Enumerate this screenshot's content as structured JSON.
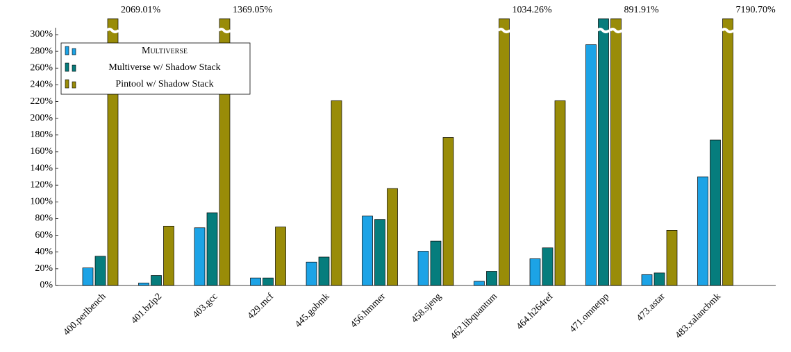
{
  "chart_data": {
    "type": "bar",
    "categories": [
      "400.perlbench",
      "401.bzip2",
      "403.gcc",
      "429.mcf",
      "445.gobmk",
      "456.hmmer",
      "458.sjeng",
      "462.libquantum",
      "464.h264ref",
      "471.omnetpp",
      "473.astar",
      "483.xalancbmk"
    ],
    "series": [
      {
        "name": "Multiverse",
        "color": "#1ca3e6",
        "values": [
          21,
          3,
          69,
          9,
          28,
          83,
          41,
          5,
          32,
          288,
          13,
          130
        ]
      },
      {
        "name": "Multiverse w/ Shadow Stack",
        "color": "#067d7d",
        "values": [
          35,
          12,
          87,
          9,
          34,
          79,
          53,
          17,
          45,
          301,
          15,
          174
        ]
      },
      {
        "name": "Pintool w/ Shadow Stack",
        "color": "#998c08",
        "values": [
          2069.01,
          71,
          1369.05,
          70,
          221,
          116,
          177,
          1034.26,
          221,
          891.91,
          66,
          7190.7
        ],
        "value_labels": [
          "2069.01%",
          null,
          "1369.05%",
          null,
          null,
          null,
          null,
          "1034.26%",
          null,
          "891.91%",
          null,
          "7190.70%"
        ]
      }
    ],
    "ylim": [
      0,
      300
    ],
    "yticks": [
      {
        "value": 0,
        "label": "0%"
      },
      {
        "value": 20,
        "label": "20%"
      },
      {
        "value": 40,
        "label": "40%"
      },
      {
        "value": 60,
        "label": "60%"
      },
      {
        "value": 80,
        "label": "80%"
      },
      {
        "value": 100,
        "label": "100%"
      },
      {
        "value": 120,
        "label": "120%"
      },
      {
        "value": 140,
        "label": "140%"
      },
      {
        "value": 160,
        "label": "160%"
      },
      {
        "value": 180,
        "label": "180%"
      },
      {
        "value": 200,
        "label": "200%"
      },
      {
        "value": 220,
        "label": "220%"
      },
      {
        "value": 240,
        "label": "240%"
      },
      {
        "value": 260,
        "label": "260%"
      },
      {
        "value": 280,
        "label": "280%"
      },
      {
        "value": 300,
        "label": "300%"
      }
    ],
    "legend": "upper left"
  }
}
